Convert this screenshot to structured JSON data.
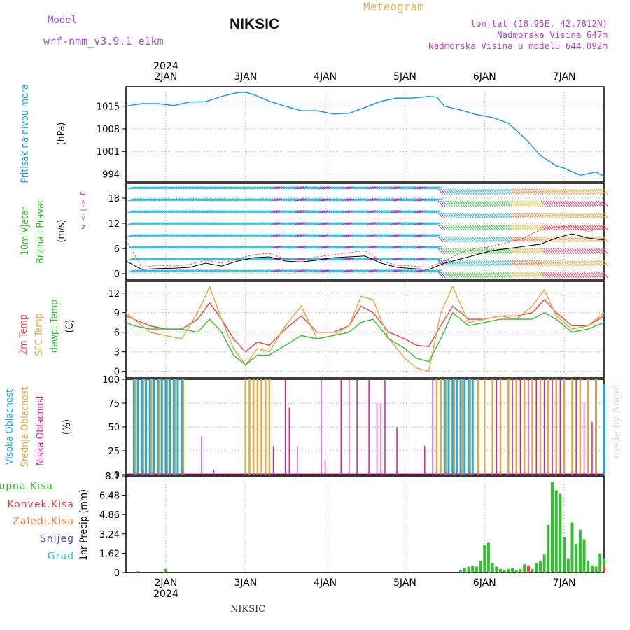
{
  "header": {
    "model_label": "Model",
    "model_name": "wrf-nmm_v3.9.1 e1km",
    "station": "NIKSIC",
    "meteogram": "Meteogram",
    "coords": "lon,lat (18.95E, 42.7812N)",
    "elevation": "Nadmorska Visina 647m",
    "model_elevation": "Nadmorska Visina u modelu 644.092m"
  },
  "footer": {
    "station": "NIKSIC",
    "credit": "made by Angel"
  },
  "colors": {
    "pressure": "#1a9be0",
    "t2m": "#ef4040",
    "sfc": "#e0a840",
    "dew": "#30c030",
    "cloud_high": "#20a8e0",
    "cloud_mid": "#e0a840",
    "cloud_low": "#d0209a",
    "precip_total": "#30c030",
    "precip_conv": "#ef4040",
    "precip_frz": "#f07a30",
    "snow": "#4848e0",
    "hail": "#30c8b0"
  },
  "chart_data": [
    {
      "type": "line",
      "panel": "pressure",
      "title": "Pritisak na nivou mora",
      "ylabel": "(hPa)",
      "top_xlabel": "2024",
      "x_ticks": [
        "2JAN",
        "3JAN",
        "4JAN",
        "5JAN",
        "6JAN",
        "7JAN"
      ],
      "y_ticks": [
        "1015",
        "1008",
        "1001",
        "994"
      ],
      "ylim": [
        991.5,
        1021
      ],
      "grid": true,
      "x": [
        1.5,
        1.7,
        1.9,
        2.1,
        2.3,
        2.5,
        2.7,
        2.9,
        3.0,
        3.1,
        3.3,
        3.5,
        3.7,
        3.9,
        4.1,
        4.3,
        4.5,
        4.7,
        4.9,
        5.1,
        5.3,
        5.4,
        5.5,
        5.7,
        5.9,
        6.1,
        6.3,
        6.5,
        6.7,
        6.9,
        7.0,
        7.2,
        7.4,
        7.5
      ],
      "series": [
        {
          "values": [
            1015,
            1015.8,
            1015.8,
            1015.2,
            1016.3,
            1016.4,
            1018,
            1019.2,
            1019.3,
            1018.6,
            1016.5,
            1015,
            1013.6,
            1013.6,
            1012.6,
            1012.8,
            1014.6,
            1016.5,
            1017.5,
            1017.5,
            1018,
            1017.8,
            1015,
            1013.8,
            1012.4,
            1011.5,
            1009.7,
            1005.2,
            999.8,
            996.5,
            995.8,
            993.6,
            994.6,
            993.2
          ]
        }
      ]
    },
    {
      "type": "line",
      "panel": "wind",
      "title": "10m Vjetar",
      "subtitle": "Brzina i Pravac",
      "ylabel": "(m/s)",
      "legend": "w <-|-> E",
      "y_ticks": [
        "18",
        "12",
        "6",
        "0"
      ],
      "ylim": [
        -1.5,
        21.5
      ],
      "grid": true,
      "x": [
        1.5,
        1.7,
        1.9,
        2.1,
        2.3,
        2.5,
        2.7,
        2.9,
        3.1,
        3.3,
        3.5,
        3.7,
        3.9,
        4.1,
        4.3,
        4.5,
        4.7,
        4.9,
        5.1,
        5.3,
        5.5,
        5.7,
        5.9,
        6.1,
        6.3,
        6.5,
        6.7,
        6.9,
        7.1,
        7.3,
        7.5
      ],
      "series": [
        {
          "values": [
            8,
            1.5,
            2,
            1.8,
            2.2,
            3.2,
            2.5,
            3.5,
            4.5,
            4.8,
            3.5,
            3.2,
            4,
            4.5,
            5,
            5.5,
            3,
            2,
            1.8,
            1.5,
            3,
            5,
            6,
            6.5,
            7.5,
            8.5,
            10.5,
            11,
            11.5,
            10,
            11
          ]
        },
        {
          "values": [
            3,
            1,
            1.2,
            1.3,
            1.5,
            2.5,
            1.8,
            3,
            3.8,
            4,
            3,
            2.8,
            3.2,
            3.8,
            4,
            4.2,
            2.5,
            1.5,
            1.2,
            1,
            2.5,
            3.5,
            4.5,
            5.5,
            6,
            6.5,
            7,
            8.5,
            9.5,
            8.5,
            8
          ]
        }
      ]
    },
    {
      "type": "line",
      "panel": "temperature",
      "title": "2m Temp",
      "subtitle": "SFC Temp",
      "extra_label": "dewpt Temp",
      "ylabel": "(C)",
      "y_ticks": [
        "12",
        "9",
        "6",
        "3",
        "0"
      ],
      "ylim": [
        -1,
        13.8
      ],
      "grid": true,
      "x": [
        1.5,
        1.6,
        1.8,
        2.0,
        2.2,
        2.4,
        2.55,
        2.7,
        2.85,
        3.0,
        3.15,
        3.3,
        3.5,
        3.7,
        3.9,
        4.1,
        4.3,
        4.45,
        4.6,
        4.8,
        5.0,
        5.15,
        5.3,
        5.45,
        5.6,
        5.8,
        6.0,
        6.2,
        6.4,
        6.6,
        6.75,
        6.9,
        7.1,
        7.3,
        7.5
      ],
      "series": [
        {
          "name": "2m Temp",
          "values": [
            8.5,
            8,
            7,
            6.5,
            6.5,
            8,
            10.5,
            8,
            5,
            3,
            4.5,
            4,
            6.5,
            8.5,
            6,
            6,
            7,
            10,
            9,
            6,
            5,
            4,
            3.8,
            7,
            10,
            8,
            8,
            8.5,
            8.5,
            9,
            11,
            9,
            7,
            7,
            8.5
          ]
        },
        {
          "name": "SFC Temp",
          "values": [
            9,
            8,
            6,
            5.5,
            5,
            9,
            13,
            8,
            3.5,
            1,
            3.5,
            3,
            7,
            10,
            5,
            5.5,
            7,
            11.5,
            11,
            5,
            2,
            0.5,
            0,
            9,
            13,
            7.5,
            8,
            8.5,
            8,
            10,
            12.5,
            8.5,
            6.5,
            7,
            9
          ]
        },
        {
          "name": "dewpt Temp",
          "values": [
            7.5,
            7,
            6.5,
            6.5,
            6.5,
            6,
            8,
            6,
            2.5,
            1,
            2.5,
            2.5,
            4,
            5.5,
            5,
            5.5,
            6,
            7.5,
            8,
            5,
            3.5,
            2,
            1.5,
            5,
            9,
            7,
            7.5,
            8,
            8,
            8,
            9,
            8,
            6,
            6.5,
            7.5
          ]
        }
      ]
    },
    {
      "type": "bar",
      "panel": "cloud",
      "title": "Visoka Oblacnost",
      "subtitle": "Srednja Oblacnost",
      "extra_label": "Niska Oblacnost",
      "ylabel": "(%)",
      "y_ticks": [
        "100",
        "75",
        "50",
        "25",
        "0"
      ],
      "ylim": [
        0,
        100
      ],
      "grid": true,
      "series": [
        {
          "name": "Visoka Oblacnost",
          "x": [
            1.6,
            1.65,
            1.7,
            1.75,
            1.8,
            1.85,
            1.9,
            1.95,
            2.0,
            2.05,
            2.1,
            2.15,
            2.2,
            5.5,
            5.55,
            5.6,
            5.65,
            5.7,
            5.75,
            5.8,
            5.85,
            7.4,
            7.5
          ],
          "values": [
            100,
            100,
            100,
            100,
            100,
            100,
            100,
            100,
            100,
            100,
            100,
            100,
            100,
            100,
            100,
            100,
            100,
            100,
            100,
            100,
            100,
            100,
            95
          ]
        },
        {
          "name": "Srednja Oblacnost",
          "x": [
            1.62,
            1.72,
            1.82,
            1.92,
            2.02,
            2.12,
            2.22,
            3.0,
            3.05,
            3.1,
            3.15,
            3.2,
            3.25,
            3.3,
            5.4,
            5.45,
            5.52,
            5.62,
            5.72,
            5.82,
            5.92,
            6.0,
            6.1,
            6.2,
            6.3,
            6.4,
            6.5,
            6.6,
            6.7,
            6.8,
            6.9,
            7.0,
            7.1,
            7.2,
            7.3,
            7.4
          ],
          "values": [
            100,
            100,
            100,
            100,
            100,
            100,
            100,
            100,
            100,
            100,
            100,
            100,
            100,
            100,
            100,
            100,
            100,
            100,
            100,
            100,
            100,
            100,
            100,
            100,
            100,
            100,
            100,
            100,
            100,
            100,
            100,
            100,
            100,
            100,
            100,
            100
          ]
        },
        {
          "name": "Niska Oblacnost",
          "x": [
            2.45,
            2.6,
            3.35,
            3.5,
            3.55,
            3.65,
            3.95,
            4.0,
            4.2,
            4.3,
            4.4,
            4.55,
            4.65,
            4.7,
            4.75,
            4.9,
            5.25,
            5.35,
            6.15,
            6.35,
            6.45,
            6.55,
            6.65,
            6.75,
            6.85,
            6.95,
            7.15,
            7.25,
            7.35
          ],
          "values": [
            40,
            5,
            30,
            100,
            70,
            30,
            100,
            15,
            100,
            100,
            100,
            100,
            75,
            75,
            100,
            50,
            30,
            100,
            100,
            100,
            100,
            100,
            100,
            100,
            100,
            100,
            100,
            75,
            55
          ]
        }
      ]
    },
    {
      "type": "bar",
      "panel": "precip",
      "title": "1hr Precip",
      "ylabel": "(mm)",
      "y_ticks": [
        "8.1",
        "6.48",
        "4.86",
        "3.24",
        "1.62",
        "0"
      ],
      "ylim": [
        0,
        8.1
      ],
      "grid": true,
      "bottom_xlabel": "2024",
      "legend": [
        "Ukupna Kisa",
        "Konvek.Kisa",
        "Zaledj.Kisa",
        "Snijeg",
        "Grad"
      ],
      "series": [
        {
          "name": "Ukupna Kisa",
          "x": [
            1.65,
            2.0,
            5.7,
            5.75,
            5.8,
            5.85,
            5.9,
            5.95,
            6.0,
            6.05,
            6.1,
            6.15,
            6.2,
            6.25,
            6.3,
            6.35,
            6.4,
            6.45,
            6.5,
            6.55,
            6.6,
            6.65,
            6.7,
            6.75,
            6.8,
            6.85,
            6.9,
            6.95,
            7.0,
            7.05,
            7.1,
            7.15,
            7.2,
            7.25,
            7.3,
            7.35,
            7.4,
            7.45,
            7.5
          ],
          "values": [
            0.1,
            0.3,
            0.2,
            0.4,
            0.5,
            0.6,
            0.5,
            1.0,
            2.3,
            2.5,
            0.8,
            0.5,
            0.3,
            0.2,
            0.3,
            0.4,
            0.2,
            0.3,
            0.7,
            0.6,
            0.3,
            0.8,
            1.0,
            1.5,
            4.0,
            7.6,
            6.9,
            6.6,
            3.0,
            1.2,
            4.2,
            2.4,
            3.6,
            2.8,
            1.0,
            0.6,
            0.5,
            1.6,
            1.2
          ]
        },
        {
          "name": "Konvek.Kisa",
          "x": [
            6.55,
            7.5
          ],
          "values": [
            0.6,
            1.2
          ]
        }
      ]
    }
  ]
}
